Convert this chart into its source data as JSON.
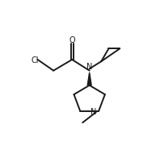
{
  "background_color": "#ffffff",
  "line_color": "#1a1a1a",
  "line_width": 1.4,
  "figsize": [
    1.98,
    2.07
  ],
  "dpi": 100,
  "xlim": [
    0,
    10
  ],
  "ylim": [
    0,
    10.5
  ]
}
